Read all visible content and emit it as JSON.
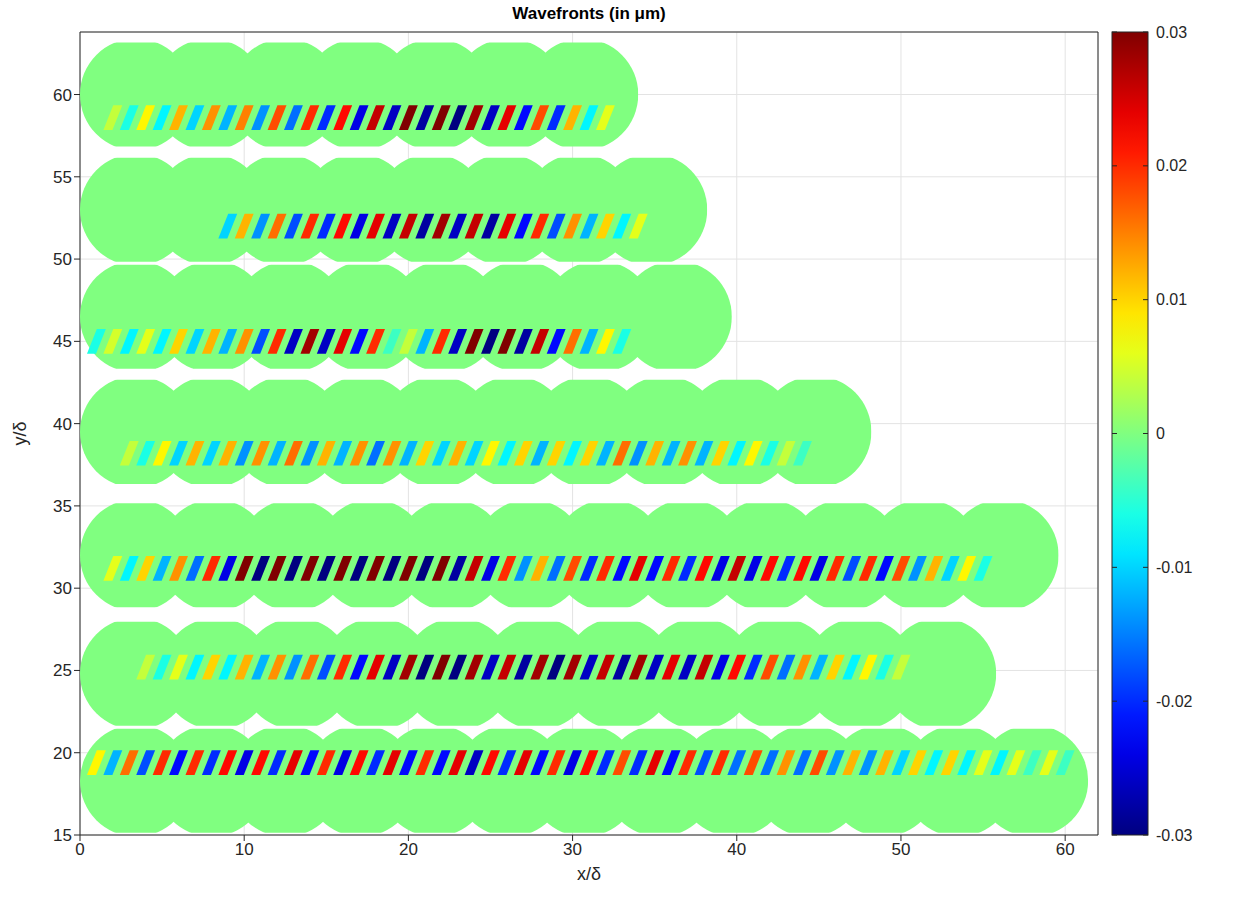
{
  "chart_data": {
    "type": "heatmap",
    "title": "Wavefronts (in μm)",
    "x_label": "x/δ",
    "y_label": "y/δ",
    "xlim": [
      0,
      62
    ],
    "xticks": [
      0,
      10,
      20,
      30,
      40,
      50,
      60
    ],
    "ylim": [
      15,
      63.8
    ],
    "yticks": [
      15,
      20,
      25,
      30,
      35,
      40,
      45,
      50,
      55,
      60
    ],
    "grid": true,
    "aperture_diameter": 6.8,
    "colorbar": {
      "lim": [
        -0.03,
        0.03
      ],
      "ticks": [
        -0.03,
        -0.02,
        -0.01,
        0,
        0.01,
        0.02,
        0.03
      ]
    },
    "rows": [
      {
        "y": 60,
        "x": [
          3.4,
          7.9,
          12.5,
          17.0,
          21.6,
          26.1,
          30.6
        ],
        "band_y": 58.6,
        "band_x": [
          2,
          3,
          4,
          5,
          6,
          7,
          8,
          9,
          10,
          11,
          12,
          13,
          14,
          15,
          16,
          17,
          18,
          19,
          20,
          21,
          22,
          23,
          24,
          25,
          26,
          27,
          28,
          29,
          30,
          31,
          32
        ],
        "band_values": [
          0.004,
          -0.006,
          0.008,
          -0.008,
          0.012,
          -0.01,
          0.014,
          -0.012,
          0.015,
          -0.014,
          0.018,
          -0.016,
          0.02,
          -0.02,
          0.022,
          -0.024,
          0.026,
          -0.026,
          0.03,
          -0.028,
          0.03,
          -0.03,
          0.028,
          -0.026,
          0.024,
          -0.022,
          0.018,
          -0.02,
          0.012,
          -0.008,
          0.006
        ]
      },
      {
        "y": 53,
        "x": [
          3.4,
          7.9,
          12.4,
          16.9,
          21.4,
          25.9,
          30.4,
          34.8
        ],
        "band_y": 52,
        "band_x": [
          9,
          10,
          11,
          12,
          13,
          14,
          15,
          16,
          17,
          18,
          19,
          20,
          21,
          22,
          23,
          24,
          25,
          26,
          27,
          28,
          29,
          30,
          31,
          32,
          33,
          34
        ],
        "band_values": [
          -0.01,
          0.012,
          -0.014,
          0.016,
          -0.018,
          0.02,
          -0.02,
          0.022,
          -0.024,
          0.024,
          -0.026,
          0.026,
          -0.028,
          0.028,
          -0.026,
          0.026,
          -0.028,
          0.024,
          -0.022,
          0.02,
          -0.018,
          0.014,
          -0.012,
          0.01,
          -0.008,
          0.006
        ]
      },
      {
        "y": 46.5,
        "x": [
          3.4,
          8.1,
          12.8,
          17.5,
          22.2,
          26.9,
          31.6,
          36.3
        ],
        "band_y": 45,
        "band_x": [
          1,
          2,
          3,
          4,
          5,
          6,
          7,
          8,
          9,
          10,
          11,
          12,
          13,
          14,
          15,
          16,
          17,
          18,
          19,
          20,
          21,
          22,
          23,
          24,
          25,
          26,
          27,
          28,
          29,
          30,
          31,
          32,
          33
        ],
        "band_values": [
          -0.006,
          0.005,
          -0.008,
          0.006,
          -0.008,
          0.01,
          -0.01,
          0.012,
          -0.012,
          0.014,
          -0.018,
          0.02,
          -0.026,
          0.028,
          -0.026,
          0.024,
          -0.022,
          0.02,
          -0.004,
          0.004,
          -0.012,
          0.02,
          -0.026,
          0.03,
          -0.03,
          0.03,
          -0.028,
          0.026,
          -0.022,
          0.016,
          -0.012,
          0.008,
          -0.006
        ]
      },
      {
        "y": 39.5,
        "x": [
          3.4,
          8.0,
          12.6,
          17.2,
          21.8,
          26.4,
          31.0,
          35.6,
          40.2,
          44.8
        ],
        "band_y": 38.2,
        "band_x": [
          3,
          4,
          5,
          6,
          7,
          8,
          9,
          10,
          11,
          12,
          13,
          14,
          15,
          16,
          17,
          18,
          19,
          20,
          21,
          22,
          23,
          24,
          25,
          26,
          27,
          28,
          29,
          30,
          31,
          32,
          33,
          34,
          35,
          36,
          37,
          38,
          39,
          40,
          41,
          42,
          43,
          44
        ],
        "band_values": [
          0.004,
          -0.006,
          0.008,
          -0.01,
          0.012,
          -0.01,
          0.012,
          -0.014,
          0.014,
          -0.012,
          0.016,
          -0.014,
          0.012,
          -0.012,
          0.014,
          -0.016,
          0.014,
          -0.012,
          0.01,
          -0.01,
          0.012,
          -0.01,
          0.008,
          -0.008,
          0.01,
          -0.012,
          0.01,
          -0.008,
          0.01,
          -0.012,
          0.016,
          -0.014,
          0.012,
          -0.012,
          0.014,
          -0.012,
          0.01,
          -0.008,
          0.008,
          -0.006,
          0.004,
          -0.004
        ]
      },
      {
        "y": 32,
        "x": [
          3.4,
          8.2,
          13.0,
          17.8,
          22.6,
          27.4,
          32.2,
          37.0,
          41.8,
          46.6,
          51.4,
          56.2
        ],
        "band_y": 31.2,
        "band_x": [
          2,
          3,
          4,
          5,
          6,
          7,
          8,
          9,
          10,
          11,
          12,
          13,
          14,
          15,
          16,
          17,
          18,
          19,
          20,
          21,
          22,
          23,
          24,
          25,
          26,
          27,
          28,
          29,
          30,
          31,
          32,
          33,
          34,
          35,
          36,
          37,
          38,
          39,
          40,
          41,
          42,
          43,
          44,
          45,
          46,
          47,
          48,
          49,
          50,
          51,
          52,
          53,
          54,
          55
        ],
        "band_values": [
          0.006,
          -0.008,
          0.01,
          -0.012,
          0.014,
          -0.016,
          0.02,
          -0.024,
          0.03,
          -0.03,
          0.03,
          -0.03,
          0.03,
          -0.03,
          0.03,
          -0.03,
          0.03,
          -0.03,
          0.03,
          -0.03,
          0.03,
          -0.028,
          0.026,
          -0.024,
          0.02,
          -0.014,
          0.012,
          -0.016,
          0.018,
          -0.02,
          0.02,
          -0.022,
          0.024,
          -0.022,
          0.02,
          -0.02,
          0.022,
          -0.024,
          0.026,
          -0.024,
          0.022,
          -0.02,
          0.022,
          -0.024,
          0.02,
          -0.018,
          0.02,
          -0.022,
          0.018,
          -0.014,
          0.012,
          -0.01,
          0.008,
          -0.006
        ]
      },
      {
        "y": 24.8,
        "x": [
          3.4,
          8.3,
          13.2,
          18.1,
          23.0,
          27.9,
          32.8,
          37.7,
          42.6,
          47.5,
          52.4
        ],
        "band_y": 25.2,
        "band_x": [
          4,
          5,
          6,
          7,
          8,
          9,
          10,
          11,
          12,
          13,
          14,
          15,
          16,
          17,
          18,
          19,
          20,
          21,
          22,
          23,
          24,
          25,
          26,
          27,
          28,
          29,
          30,
          31,
          32,
          33,
          34,
          35,
          36,
          37,
          38,
          39,
          40,
          41,
          42,
          43,
          44,
          45,
          46,
          47,
          48,
          49,
          50
        ],
        "band_values": [
          0.004,
          -0.006,
          0.006,
          -0.008,
          0.01,
          -0.008,
          0.012,
          -0.012,
          0.014,
          -0.014,
          0.016,
          -0.018,
          0.02,
          -0.022,
          0.024,
          -0.026,
          0.028,
          -0.03,
          0.03,
          -0.03,
          0.028,
          -0.026,
          0.026,
          -0.028,
          0.028,
          -0.03,
          0.028,
          -0.026,
          0.026,
          -0.028,
          0.028,
          -0.026,
          0.024,
          -0.026,
          0.026,
          -0.024,
          0.022,
          -0.02,
          0.018,
          -0.016,
          0.014,
          -0.012,
          0.01,
          -0.008,
          0.008,
          -0.006,
          0.004
        ]
      },
      {
        "y": 18.3,
        "x": [
          3.4,
          8.0,
          12.5,
          17.1,
          21.6,
          26.2,
          30.7,
          35.3,
          39.8,
          44.4,
          48.9,
          53.5,
          58.0
        ],
        "band_y": 19.4,
        "band_x": [
          1,
          2,
          3,
          4,
          5,
          6,
          7,
          8,
          9,
          10,
          11,
          12,
          13,
          14,
          15,
          16,
          17,
          18,
          19,
          20,
          21,
          22,
          23,
          24,
          25,
          26,
          27,
          28,
          29,
          30,
          31,
          32,
          33,
          34,
          35,
          36,
          37,
          38,
          39,
          40,
          41,
          42,
          43,
          44,
          45,
          46,
          47,
          48,
          49,
          50,
          51,
          52,
          53,
          54,
          55,
          56,
          57,
          58,
          59,
          60
        ],
        "band_values": [
          0.008,
          -0.012,
          0.016,
          -0.018,
          0.02,
          -0.022,
          0.02,
          -0.02,
          0.022,
          -0.024,
          0.022,
          -0.02,
          0.024,
          -0.022,
          0.02,
          -0.024,
          0.022,
          -0.02,
          0.024,
          -0.022,
          0.02,
          -0.022,
          0.024,
          -0.026,
          0.022,
          -0.02,
          0.024,
          -0.022,
          0.02,
          -0.024,
          0.022,
          -0.02,
          0.018,
          -0.02,
          0.024,
          -0.022,
          0.02,
          -0.018,
          0.02,
          -0.016,
          0.018,
          -0.016,
          0.014,
          -0.016,
          0.018,
          -0.014,
          0.012,
          -0.014,
          0.012,
          -0.01,
          0.01,
          -0.008,
          0.01,
          -0.008,
          0.006,
          -0.008,
          0.006,
          -0.004,
          0.006,
          -0.004
        ]
      }
    ]
  }
}
